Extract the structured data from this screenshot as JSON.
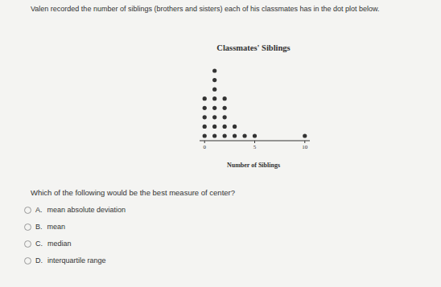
{
  "header": {
    "text": "Valen recorded the number of siblings (brothers and sisters) each of his classmates has in the dot plot below."
  },
  "chart_data": {
    "type": "dot plot",
    "title": "Classmates' Siblings",
    "x_label": "Number of Siblings",
    "x": [
      0,
      1,
      2,
      3,
      4,
      5,
      10
    ],
    "values": [
      5,
      8,
      5,
      2,
      1,
      1,
      1
    ],
    "xlim": [
      -0.5,
      10.5
    ],
    "xticks": [
      0,
      5,
      10
    ],
    "color": "#333333",
    "tick_labels": "x"
  },
  "question": {
    "text": "Which of the following would be the best measure of center?",
    "options": [
      {
        "letter": "A.",
        "text": "mean absolute deviation"
      },
      {
        "letter": "B.",
        "text": "mean"
      },
      {
        "letter": "C.",
        "text": "median"
      },
      {
        "letter": "D.",
        "text": "interquartile range"
      }
    ]
  }
}
